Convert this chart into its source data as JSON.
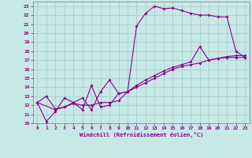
{
  "xlabel": "Windchill (Refroidissement éolien,°C)",
  "background_color": "#c8e8e8",
  "grid_color": "#a8cece",
  "line_color": "#880088",
  "xlim": [
    -0.5,
    23.5
  ],
  "ylim": [
    10,
    23.5
  ],
  "xticks": [
    0,
    1,
    2,
    3,
    4,
    5,
    6,
    7,
    8,
    9,
    10,
    11,
    12,
    13,
    14,
    15,
    16,
    17,
    18,
    19,
    20,
    21,
    22,
    23
  ],
  "yticks": [
    10,
    11,
    12,
    13,
    14,
    15,
    16,
    17,
    18,
    19,
    20,
    21,
    22,
    23
  ],
  "line1_x": [
    0,
    1,
    2,
    3,
    4,
    5,
    6,
    7,
    8,
    9,
    10,
    11,
    12,
    13,
    14,
    15,
    16,
    17,
    18,
    19,
    20,
    21,
    22,
    23
  ],
  "line1_y": [
    12.3,
    13.0,
    11.6,
    11.8,
    12.3,
    11.5,
    14.2,
    11.8,
    12.0,
    13.3,
    13.5,
    20.8,
    22.2,
    23.0,
    22.7,
    22.8,
    22.5,
    22.2,
    22.0,
    22.0,
    21.8,
    21.8,
    18.0,
    17.3
  ],
  "line2_x": [
    0,
    2,
    3,
    4,
    5,
    6,
    7,
    8,
    9,
    10,
    11,
    12,
    13,
    14,
    15,
    16,
    17,
    18,
    19,
    20,
    21,
    22,
    23
  ],
  "line2_y": [
    12.3,
    11.5,
    11.8,
    12.2,
    12.0,
    12.0,
    12.3,
    12.3,
    12.5,
    13.5,
    14.2,
    14.8,
    15.3,
    15.8,
    16.2,
    16.5,
    16.8,
    18.5,
    17.0,
    17.2,
    17.3,
    17.3,
    17.3
  ],
  "line3_x": [
    0,
    1,
    2,
    3,
    4,
    5,
    6,
    7,
    8,
    9,
    10,
    11,
    12,
    13,
    14,
    15,
    16,
    17,
    18,
    19,
    20,
    21,
    22,
    23
  ],
  "line3_y": [
    12.3,
    10.2,
    11.3,
    12.8,
    12.3,
    12.8,
    11.5,
    13.5,
    14.8,
    13.3,
    13.5,
    14.0,
    14.5,
    15.0,
    15.5,
    16.0,
    16.3,
    16.5,
    16.7,
    17.0,
    17.2,
    17.4,
    17.5,
    17.5
  ]
}
